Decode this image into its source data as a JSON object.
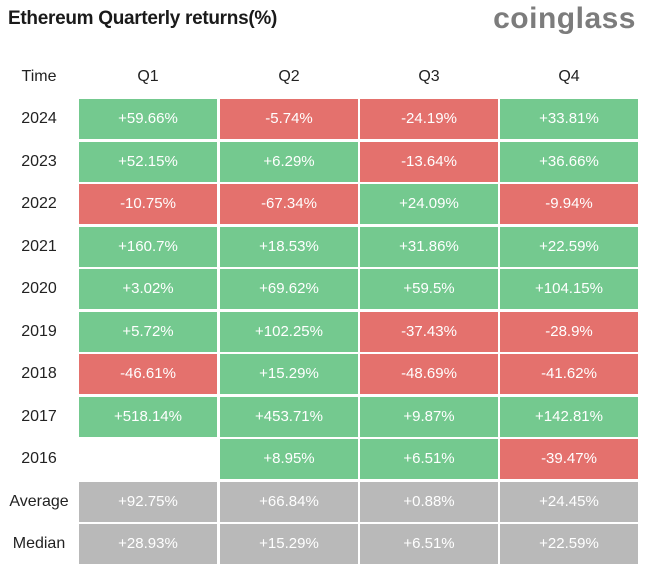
{
  "title": "Ethereum Quarterly returns(%)",
  "brand": "coinglass",
  "chart_data": {
    "type": "table",
    "corner_label": "Time",
    "columns": [
      "Q1",
      "Q2",
      "Q3",
      "Q4"
    ],
    "rows": [
      {
        "label": "2024",
        "values": [
          "+59.66%",
          "-5.74%",
          "-24.19%",
          "+33.81%"
        ]
      },
      {
        "label": "2023",
        "values": [
          "+52.15%",
          "+6.29%",
          "-13.64%",
          "+36.66%"
        ]
      },
      {
        "label": "2022",
        "values": [
          "-10.75%",
          "-67.34%",
          "+24.09%",
          "-9.94%"
        ]
      },
      {
        "label": "2021",
        "values": [
          "+160.7%",
          "+18.53%",
          "+31.86%",
          "+22.59%"
        ]
      },
      {
        "label": "2020",
        "values": [
          "+3.02%",
          "+69.62%",
          "+59.5%",
          "+104.15%"
        ]
      },
      {
        "label": "2019",
        "values": [
          "+5.72%",
          "+102.25%",
          "-37.43%",
          "-28.9%"
        ]
      },
      {
        "label": "2018",
        "values": [
          "-46.61%",
          "+15.29%",
          "-48.69%",
          "-41.62%"
        ]
      },
      {
        "label": "2017",
        "values": [
          "+518.14%",
          "+453.71%",
          "+9.87%",
          "+142.81%"
        ]
      },
      {
        "label": "2016",
        "values": [
          "",
          "+8.95%",
          "+6.51%",
          "-39.47%"
        ]
      }
    ],
    "summary_rows": [
      {
        "label": "Average",
        "values": [
          "+92.75%",
          "+66.84%",
          "+0.88%",
          "+24.45%"
        ]
      },
      {
        "label": "Median",
        "values": [
          "+28.93%",
          "+15.29%",
          "+6.51%",
          "+22.59%"
        ]
      }
    ],
    "colors": {
      "positive": "#74c98f",
      "negative": "#e4716d",
      "summary": "#b9b9b9"
    }
  }
}
